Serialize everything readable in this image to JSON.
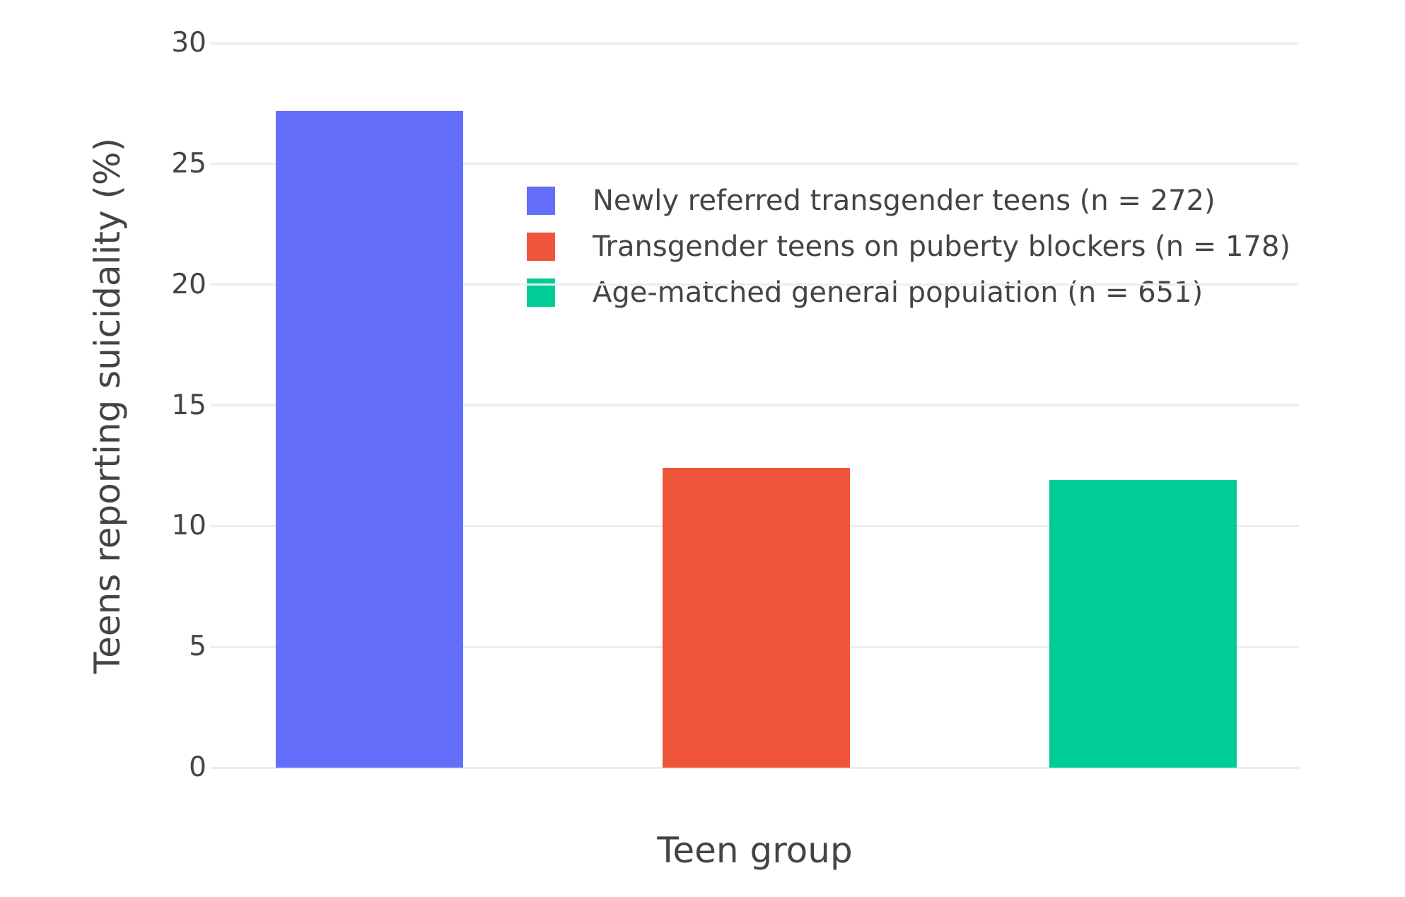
{
  "chart_data": {
    "type": "bar",
    "title": "",
    "xlabel": "Teen group",
    "ylabel": "Teens reporting suicidality (%)",
    "categories": [
      "Newly referred transgender teens (n = 272)",
      "Transgender teens on puberty blockers (n = 178)",
      "Age-matched general population (n = 651)"
    ],
    "series": [
      {
        "name": "Newly referred transgender teens (n = 272)",
        "value": 27.2,
        "color": "#636EFA"
      },
      {
        "name": "Transgender teens on puberty blockers (n = 178)",
        "value": 12.4,
        "color": "#EF553B"
      },
      {
        "name": "Age-matched general population (n = 651)",
        "value": 11.9,
        "color": "#00CC96"
      }
    ],
    "ylim": [
      0,
      30
    ],
    "yticks": [
      0,
      5,
      10,
      15,
      20,
      25,
      30
    ],
    "grid": true,
    "gridline_color": "#E9EDF5",
    "text_color": "#444444",
    "background": "#FFFFFF",
    "legend_position": "inside-top-left"
  }
}
